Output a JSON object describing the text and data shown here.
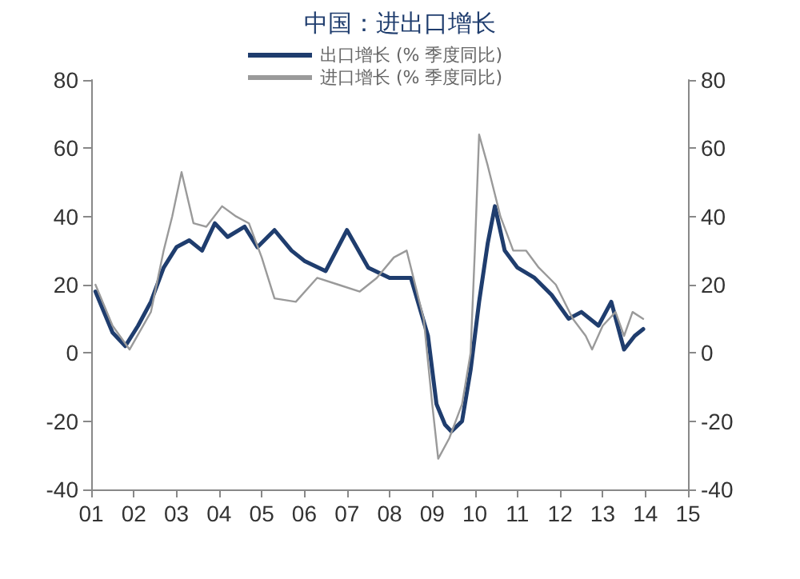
{
  "chart_data": {
    "type": "line",
    "title": "中国：进出口增长",
    "xlim": [
      2001,
      2015
    ],
    "xticks": [
      {
        "value": 2001,
        "label": "01"
      },
      {
        "value": 2002,
        "label": "02"
      },
      {
        "value": 2003,
        "label": "03"
      },
      {
        "value": 2004,
        "label": "04"
      },
      {
        "value": 2005,
        "label": "05"
      },
      {
        "value": 2006,
        "label": "06"
      },
      {
        "value": 2007,
        "label": "07"
      },
      {
        "value": 2008,
        "label": "08"
      },
      {
        "value": 2009,
        "label": "09"
      },
      {
        "value": 2010,
        "label": "10"
      },
      {
        "value": 2011,
        "label": "11"
      },
      {
        "value": 2012,
        "label": "12"
      },
      {
        "value": 2013,
        "label": "13"
      },
      {
        "value": 2014,
        "label": "14"
      },
      {
        "value": 2015,
        "label": "15"
      }
    ],
    "ylim": [
      -40,
      80
    ],
    "yticks": [
      -40,
      -20,
      0,
      20,
      40,
      60,
      80
    ],
    "y2lim": [
      -40,
      80
    ],
    "y2ticks": [
      -40,
      -20,
      0,
      20,
      40,
      60,
      80
    ],
    "grid": false,
    "legend": "top",
    "marker": "none",
    "line_style": "solid",
    "series": [
      {
        "name": "出口增长 (% 季度同比)",
        "color": "#1f3d6e",
        "x": [
          2001.1,
          2001.5,
          2001.8,
          2002.1,
          2002.4,
          2002.7,
          2003.0,
          2003.3,
          2003.6,
          2003.9,
          2004.2,
          2004.6,
          2004.9,
          2005.3,
          2005.7,
          2006.0,
          2006.5,
          2007.0,
          2007.5,
          2008.0,
          2008.5,
          2008.9,
          2009.1,
          2009.3,
          2009.45,
          2009.7,
          2009.9,
          2010.1,
          2010.3,
          2010.47,
          2010.7,
          2011.0,
          2011.4,
          2011.8,
          2012.2,
          2012.5,
          2012.9,
          2013.2,
          2013.5,
          2013.75,
          2013.95
        ],
        "values": [
          18,
          6,
          2,
          8,
          15,
          25,
          31,
          33,
          30,
          38,
          34,
          37,
          31,
          36,
          30,
          27,
          24,
          36,
          25,
          22,
          22,
          5,
          -15,
          -21,
          -23,
          -20,
          -5,
          15,
          32,
          43,
          30,
          25,
          22,
          17,
          10,
          12,
          8,
          15,
          1,
          5,
          7
        ]
      },
      {
        "name": "进口增长 (% 季度同比)",
        "color": "#9a9a9a",
        "x": [
          2001.1,
          2001.5,
          2001.9,
          2002.4,
          2002.7,
          2002.9,
          2003.12,
          2003.4,
          2003.7,
          2004.07,
          2004.4,
          2004.7,
          2005.0,
          2005.3,
          2005.8,
          2006.3,
          2006.8,
          2007.3,
          2007.7,
          2008.1,
          2008.4,
          2008.8,
          2009.0,
          2009.14,
          2009.4,
          2009.7,
          2009.9,
          2010.0,
          2010.1,
          2010.3,
          2010.6,
          2010.9,
          2011.2,
          2011.5,
          2011.9,
          2012.3,
          2012.6,
          2012.75,
          2013.0,
          2013.3,
          2013.5,
          2013.7,
          2013.95
        ],
        "values": [
          20,
          8,
          1,
          12,
          30,
          40,
          53,
          38,
          37,
          43,
          40,
          38,
          28,
          16,
          15,
          22,
          20,
          18,
          22,
          28,
          30,
          10,
          -15,
          -31,
          -25,
          -15,
          0,
          30,
          64,
          55,
          40,
          30,
          30,
          25,
          20,
          10,
          5,
          1,
          8,
          12,
          5,
          12,
          10
        ]
      }
    ]
  }
}
